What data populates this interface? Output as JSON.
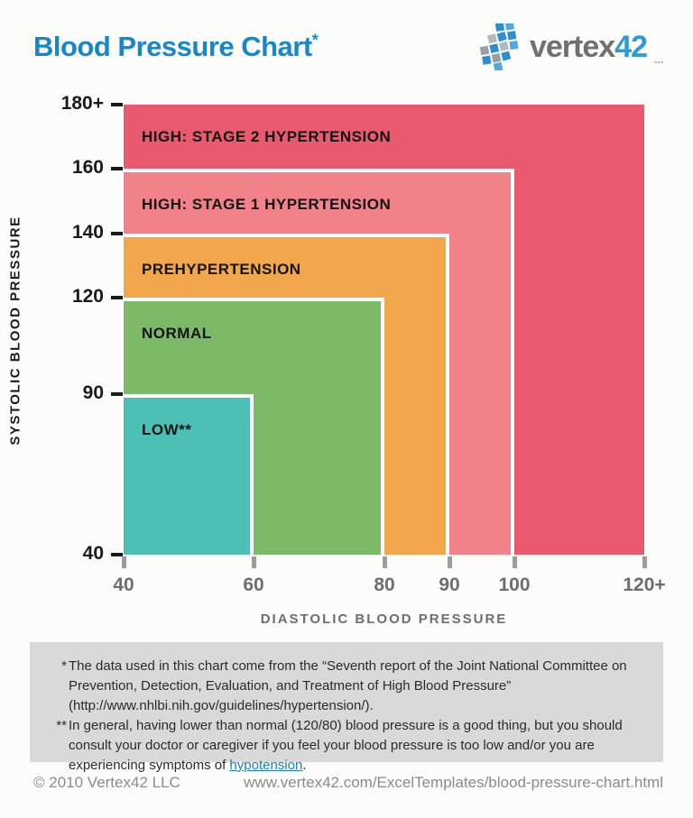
{
  "header": {
    "title": "Blood Pressure Chart",
    "title_asterisk": "*",
    "title_color": "#1787c6",
    "logo": {
      "word_main": "vertex",
      "word_num": "42",
      "suffix": "...",
      "word_main_color": "#6e7072",
      "word_num_color": "#2d9ad5",
      "tile_blue": "#2e8fd0",
      "tile_blue_light": "#54a8dc",
      "tile_gray": "#b5b8bb",
      "tile_gray_dark": "#9b9fa2"
    }
  },
  "chart_data": {
    "type": "area",
    "title": "Blood Pressure Chart",
    "xlabel": "DIASTOLIC BLOOD PRESSURE",
    "ylabel": "SYSTOLIC BLOOD PRESSURE",
    "xlim": [
      40,
      120
    ],
    "ylim": [
      40,
      180
    ],
    "grid": false,
    "legend": "labels-inside-zones",
    "x_ticks": [
      {
        "value": 40,
        "label": "40"
      },
      {
        "value": 60,
        "label": "60"
      },
      {
        "value": 80,
        "label": "80"
      },
      {
        "value": 90,
        "label": "90"
      },
      {
        "value": 100,
        "label": "100"
      },
      {
        "value": 120,
        "label": "120+"
      }
    ],
    "y_ticks": [
      {
        "value": 40,
        "label": "40"
      },
      {
        "value": 90,
        "label": "90"
      },
      {
        "value": 120,
        "label": "120"
      },
      {
        "value": 140,
        "label": "140"
      },
      {
        "value": 160,
        "label": "160"
      },
      {
        "value": 180,
        "label": "180+"
      }
    ],
    "zones": [
      {
        "label": "HIGH: STAGE 2 HYPERTENSION",
        "diastolic_range": [
          40,
          120
        ],
        "systolic_range": [
          40,
          180
        ],
        "diastolic_max_display": "120+",
        "systolic_max_display": "180+",
        "color": "#ea5a6e"
      },
      {
        "label": "HIGH: STAGE 1 HYPERTENSION",
        "diastolic_range": [
          40,
          100
        ],
        "systolic_range": [
          40,
          160
        ],
        "color": "#f28289"
      },
      {
        "label": "PREHYPERTENSION",
        "diastolic_range": [
          40,
          90
        ],
        "systolic_range": [
          40,
          140
        ],
        "color": "#f3a74c"
      },
      {
        "label": "NORMAL",
        "diastolic_range": [
          40,
          80
        ],
        "systolic_range": [
          40,
          120
        ],
        "color": "#7cba68"
      },
      {
        "label": "LOW**",
        "diastolic_range": [
          40,
          60
        ],
        "systolic_range": [
          40,
          90
        ],
        "color": "#4cc0b5"
      }
    ],
    "zone_border_color": "#ffffff"
  },
  "footnotes": {
    "background": "#d9d9d9",
    "note1": {
      "marker": "*",
      "lines": [
        "The data used in this chart come from the “Seventh report of the Joint National Committee on",
        "Prevention, Detection, Evaluation, and Treatment of High Blood Pressure”",
        "(http://www.nhlbi.nih.gov/guidelines/hypertension/)."
      ]
    },
    "note2": {
      "marker": "**",
      "lines_before_link": [
        "In general, having lower than normal (120/80) blood pressure is a good thing, but you should",
        "consult your doctor or caregiver if you feel your blood pressure is too low and/or you are"
      ],
      "last_line_prefix": "experiencing symptoms of ",
      "link_text": "hypotension",
      "last_line_suffix": "."
    }
  },
  "footer": {
    "copyright": "© 2010 Vertex42 LLC",
    "url": "www.vertex42.com/ExcelTemplates/blood-pressure-chart.html"
  }
}
